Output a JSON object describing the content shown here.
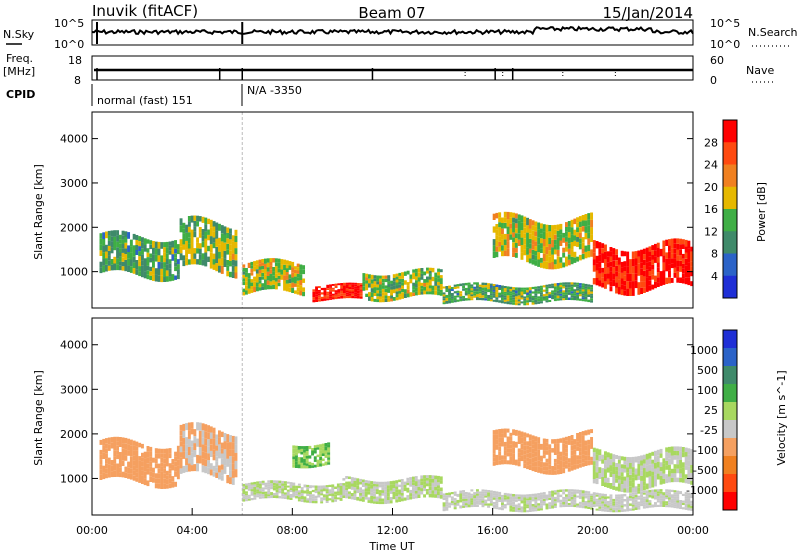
{
  "header": {
    "station": "Inuvik (fitACF)",
    "beam": "Beam 07",
    "date": "15/Jan/2014"
  },
  "status_panel": {
    "nsky_label": "N.Sky",
    "nsearch_label": "N.Search",
    "freq_label_line1": "Freq.",
    "freq_label_line2": "[MHz]",
    "nave_label": "Nave",
    "cpid_label": "CPID",
    "cpid_entries": [
      "normal (fast) 151",
      "N/A -3350"
    ],
    "noise_ticks": [
      "10^5",
      "10^0"
    ],
    "freq_ticks": [
      "18",
      "8"
    ],
    "nave_ticks": [
      "60",
      "0"
    ]
  },
  "colors": {
    "power": [
      "#1f2fd6",
      "#2b63c8",
      "#3f8a6a",
      "#3fae45",
      "#e6b800",
      "#f08020",
      "#ff4a10",
      "#ff0000"
    ],
    "velocity": [
      "#ff0000",
      "#ff4a10",
      "#f08020",
      "#f5a060",
      "#c8c8c8",
      "#a8d860",
      "#3fae45",
      "#3f8a6a",
      "#2b63c8",
      "#1f2fd6"
    ]
  },
  "chart_data": [
    {
      "type": "heatmap",
      "quantity": "Power",
      "ylabel": "Slant Range [km]",
      "yticks": [
        1000,
        2000,
        3000,
        4000
      ],
      "ylim": [
        180,
        4600
      ],
      "xlim": [
        0,
        24
      ],
      "colorbar_label": "Power [dB]",
      "colorbar_ticks": [
        "4",
        "8",
        "12",
        "16",
        "20",
        "24",
        "28"
      ],
      "colorbar_range": [
        0,
        30
      ],
      "data_gap_hour": 6.0,
      "echo_regions": [
        {
          "t_start": 0.3,
          "t_end": 3.5,
          "r_low": 900,
          "r_high": 1800,
          "dB": 12
        },
        {
          "t_start": 3.5,
          "t_end": 5.8,
          "r_low": 1000,
          "r_high": 2100,
          "dB": 14
        },
        {
          "t_start": 6.0,
          "t_end": 8.5,
          "r_low": 500,
          "r_high": 1200,
          "dB": 16
        },
        {
          "t_start": 8.8,
          "t_end": 10.8,
          "r_low": 350,
          "r_high": 700,
          "dB": 28
        },
        {
          "t_start": 10.8,
          "t_end": 14.0,
          "r_low": 400,
          "r_high": 1000,
          "dB": 14
        },
        {
          "t_start": 16.0,
          "t_end": 20.0,
          "r_low": 1200,
          "r_high": 2200,
          "dB": 16
        },
        {
          "t_start": 20.0,
          "t_end": 24.0,
          "r_low": 600,
          "r_high": 1600,
          "dB": 28
        },
        {
          "t_start": 14.0,
          "t_end": 20.0,
          "r_low": 300,
          "r_high": 700,
          "dB": 12
        }
      ]
    },
    {
      "type": "heatmap",
      "quantity": "Velocity",
      "ylabel": "Slant Range [km]",
      "yticks": [
        1000,
        2000,
        3000,
        4000
      ],
      "ylim": [
        180,
        4600
      ],
      "xlim": [
        0,
        24
      ],
      "xlabel": "Time UT",
      "xticks": [
        "00:00",
        "04:00",
        "08:00",
        "12:00",
        "16:00",
        "20:00",
        "00:00"
      ],
      "colorbar_label": "Velocity [m s^-1]",
      "colorbar_ticks": [
        "1000",
        "500",
        "100",
        "25",
        "-25",
        "-100",
        "-500",
        "-1000"
      ],
      "data_gap_hour": 6.0,
      "echo_regions": [
        {
          "t_start": 0.3,
          "t_end": 3.5,
          "r_low": 900,
          "r_high": 1800,
          "v": -300
        },
        {
          "t_start": 3.5,
          "t_end": 5.8,
          "r_low": 1000,
          "r_high": 2100,
          "v": -200
        },
        {
          "t_start": 6.0,
          "t_end": 10.0,
          "r_low": 500,
          "r_high": 900,
          "v": 0
        },
        {
          "t_start": 8.0,
          "t_end": 9.5,
          "r_low": 1300,
          "r_high": 1800,
          "v": 200
        },
        {
          "t_start": 10.0,
          "t_end": 14.0,
          "r_low": 500,
          "r_high": 1000,
          "v": 0
        },
        {
          "t_start": 16.0,
          "t_end": 20.0,
          "r_low": 1200,
          "r_high": 2000,
          "v": -300
        },
        {
          "t_start": 20.0,
          "t_end": 24.0,
          "r_low": 800,
          "r_high": 1600,
          "v": 0
        },
        {
          "t_start": 14.0,
          "t_end": 24.0,
          "r_low": 300,
          "r_high": 700,
          "v": -50
        }
      ]
    }
  ]
}
